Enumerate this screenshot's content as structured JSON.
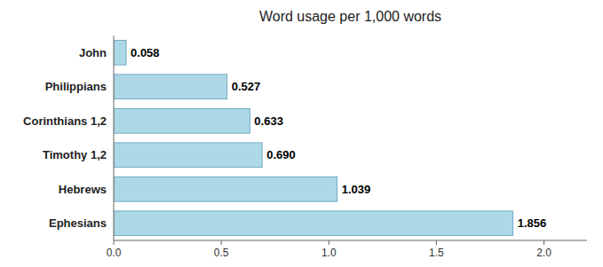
{
  "chart_data": {
    "type": "bar",
    "orientation": "horizontal",
    "title": "Word usage per 1,000 words",
    "categories": [
      "John",
      "Philippians",
      "Corinthians 1,2",
      "Timothy 1,2",
      "Hebrews",
      "Ephesians"
    ],
    "values": [
      0.058,
      0.527,
      0.633,
      0.69,
      1.039,
      1.856
    ],
    "value_labels": [
      "0.058",
      "0.527",
      "0.633",
      "0.690",
      "1.039",
      "1.856"
    ],
    "data_labels": true,
    "color": "#add8e6",
    "xlim": [
      0,
      2.2
    ],
    "xticks": [
      {
        "value": 0,
        "label": "0.0"
      },
      0.5,
      {
        "value": 1,
        "label": "1.0"
      },
      1.5,
      {
        "value": 2,
        "label": "2.0"
      }
    ],
    "grid": false
  }
}
